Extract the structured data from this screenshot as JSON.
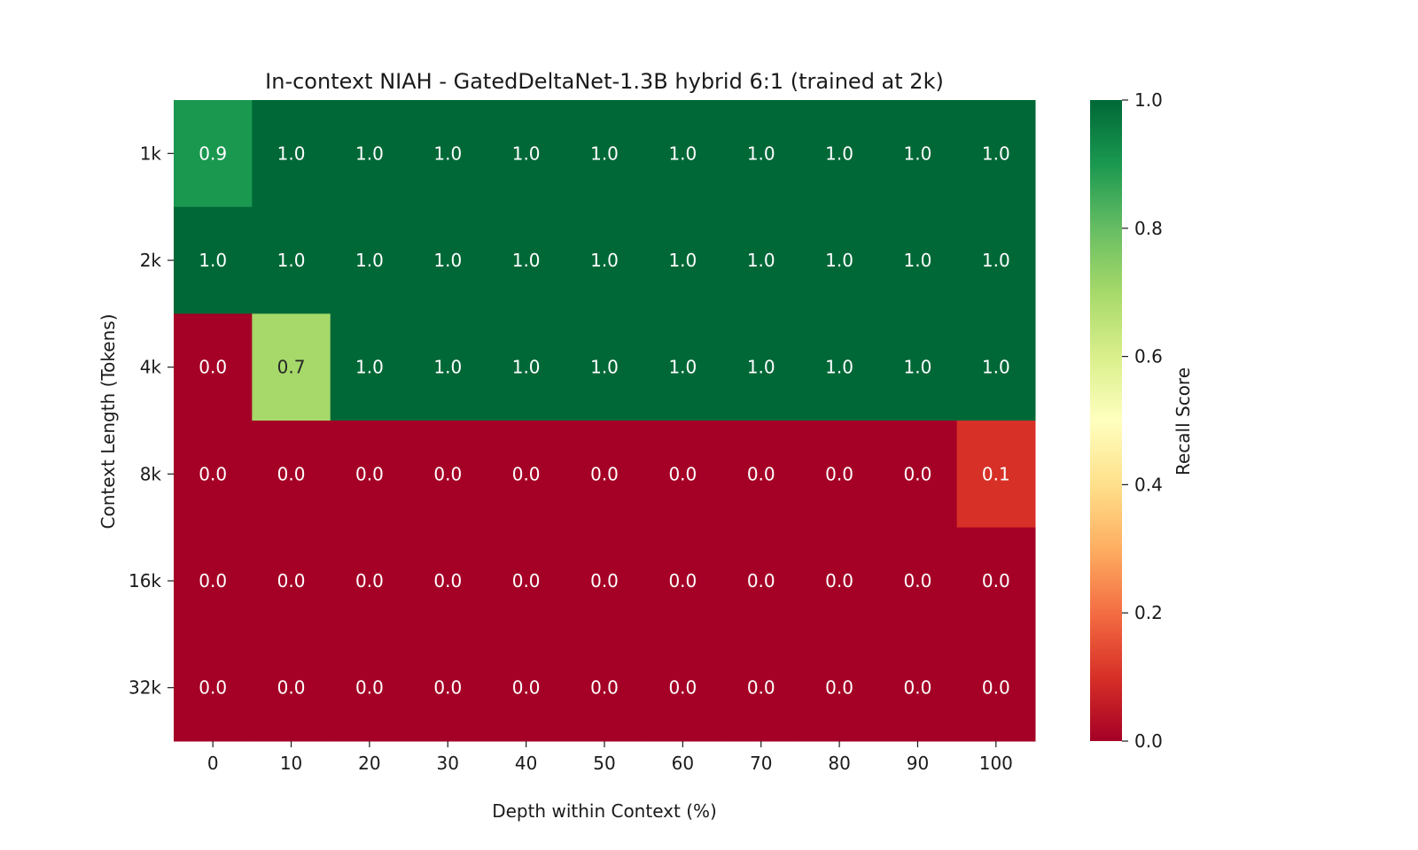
{
  "chart_data": {
    "type": "heatmap",
    "title": "In-context NIAH - GatedDeltaNet-1.3B hybrid 6:1 (trained at 2k)",
    "xlabel": "Depth within Context (%)",
    "ylabel": "Context Length (Tokens)",
    "x_categories": [
      "0",
      "10",
      "20",
      "30",
      "40",
      "50",
      "60",
      "70",
      "80",
      "90",
      "100"
    ],
    "y_categories": [
      "1k",
      "2k",
      "4k",
      "8k",
      "16k",
      "32k"
    ],
    "values": [
      [
        0.9,
        1.0,
        1.0,
        1.0,
        1.0,
        1.0,
        1.0,
        1.0,
        1.0,
        1.0,
        1.0
      ],
      [
        1.0,
        1.0,
        1.0,
        1.0,
        1.0,
        1.0,
        1.0,
        1.0,
        1.0,
        1.0,
        1.0
      ],
      [
        0.0,
        0.7,
        1.0,
        1.0,
        1.0,
        1.0,
        1.0,
        1.0,
        1.0,
        1.0,
        1.0
      ],
      [
        0.0,
        0.0,
        0.0,
        0.0,
        0.0,
        0.0,
        0.0,
        0.0,
        0.0,
        0.0,
        0.1
      ],
      [
        0.0,
        0.0,
        0.0,
        0.0,
        0.0,
        0.0,
        0.0,
        0.0,
        0.0,
        0.0,
        0.0
      ],
      [
        0.0,
        0.0,
        0.0,
        0.0,
        0.0,
        0.0,
        0.0,
        0.0,
        0.0,
        0.0,
        0.0
      ]
    ],
    "value_format": "0.0",
    "vmin": 0.0,
    "vmax": 1.0,
    "colormap": "RdYlGn",
    "colorbar": {
      "label": "Recall Score",
      "ticks": [
        "0.0",
        "0.2",
        "0.4",
        "0.6",
        "0.8",
        "1.0"
      ],
      "placement": "right"
    },
    "grid": false
  }
}
